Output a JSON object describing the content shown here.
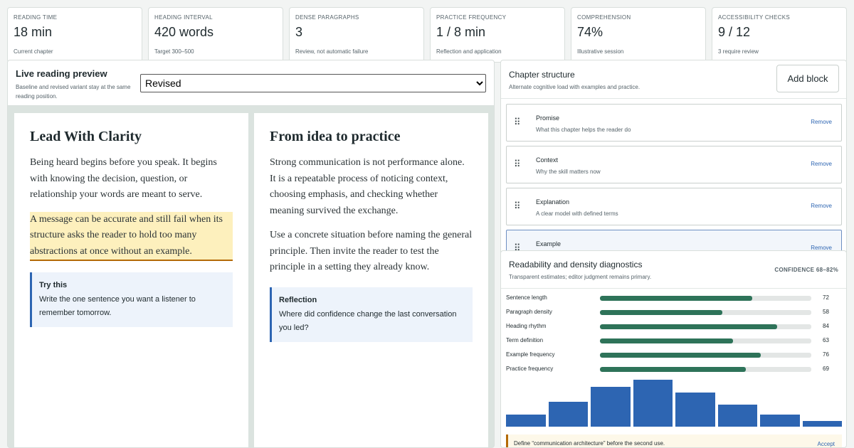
{
  "metrics": [
    {
      "label": "Reading time",
      "value": "18 min",
      "sub": "Current chapter"
    },
    {
      "label": "Heading interval",
      "value": "420 words",
      "sub": "Target 300–500"
    },
    {
      "label": "Dense paragraphs",
      "value": "3",
      "sub": "Review, not automatic failure"
    },
    {
      "label": "Practice frequency",
      "value": "1 / 8 min",
      "sub": "Reflection and application"
    },
    {
      "label": "Comprehension",
      "value": "74%",
      "sub": "Illustrative session"
    },
    {
      "label": "Accessibility checks",
      "value": "9 / 12",
      "sub": "3 require review"
    }
  ],
  "preview": {
    "title": "Live reading preview",
    "description": "Baseline and revised variant stay at the same reading position.",
    "variant": "Revised",
    "variant_options": [
      "Revised"
    ],
    "left": {
      "heading": "Lead With Clarity",
      "p1": "Being heard begins before you speak. It begins with knowing the decision, question, or relationship your words are meant to serve.",
      "p2": "A message can be accurate and still fail when its structure asks the reader to hold too many abstractions at once without an example.",
      "callout_title": "Try this",
      "callout_body": "Write the one sentence you want a listener to remember tomorrow."
    },
    "right": {
      "heading": "From idea to practice",
      "p1": "Strong communication is not performance alone. It is a repeatable process of noticing context, choosing emphasis, and checking whether meaning survived the exchange.",
      "p2": "Use a concrete situation before naming the general principle. Then invite the reader to test the principle in a setting they already know.",
      "callout_title": "Reflection",
      "callout_body": "Where did confidence change the last conversation you led?"
    }
  },
  "structure": {
    "title": "Chapter structure",
    "subtitle": "Alternate cognitive load with examples and practice.",
    "add_label": "Add block",
    "remove_label": "Remove",
    "blocks": [
      {
        "title": "Promise",
        "desc": "What this chapter helps the reader do"
      },
      {
        "title": "Context",
        "desc": "Why the skill matters now"
      },
      {
        "title": "Explanation",
        "desc": "A clear model with defined terms"
      },
      {
        "title": "Example",
        "desc": ""
      }
    ]
  },
  "diagnostics": {
    "title": "Readability and density diagnostics",
    "subtitle": "Transparent estimates; editor judgment remains primary.",
    "confidence": "CONFIDENCE 68–82%",
    "rows": [
      {
        "name": "Sentence length",
        "value": 72
      },
      {
        "name": "Paragraph density",
        "value": 58
      },
      {
        "name": "Heading rhythm",
        "value": 84
      },
      {
        "name": "Term definition",
        "value": 63
      },
      {
        "name": "Example frequency",
        "value": 76
      },
      {
        "name": "Practice frequency",
        "value": 69
      }
    ],
    "histogram": [
      26,
      52,
      83,
      98,
      72,
      47,
      25,
      12
    ],
    "suggestion": "Define “communication architecture” before the second use.",
    "accept_label": "Accept"
  },
  "colors": {
    "accent": "#2d65b2",
    "bar_green": "#2e7359",
    "highlight": "#fdf0bd",
    "warning": "#b46a07"
  }
}
